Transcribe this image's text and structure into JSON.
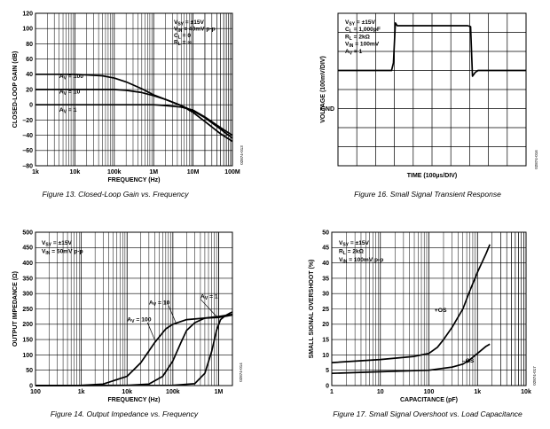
{
  "charts": [
    {
      "caption": "Figure 13. Closed-Loop Gain vs. Frequency",
      "code": "02874-013",
      "conditions": [
        "V SY = ±15V",
        "V IN = 40mV p-p",
        "C L = 0",
        "R L = ∞"
      ],
      "curve_labels": [
        {
          "text": "A V = 100",
          "x": 4000,
          "y": 35
        },
        {
          "text": "A V = 10",
          "x": 4000,
          "y": 15
        },
        {
          "text": "A V = 1",
          "x": 4000,
          "y": -9
        }
      ]
    },
    {
      "caption": "Figure 16. Small Signal Transient Response",
      "code": "02874-016",
      "conditions": [
        "V SY = ±15V",
        "C L = 1,000pF",
        "R L = 2kΩ",
        "V IN = 100mV",
        "A V = 1"
      ]
    },
    {
      "caption": "Figure 14. Output Impedance vs. Frequency",
      "code": "02874-014",
      "conditions": [
        "V SY = ±15V",
        "V IN = 50mV p-p"
      ],
      "curve_labels": [
        {
          "text": "A V = 100",
          "x": 10000,
          "y": 210
        },
        {
          "text": "A V = 10",
          "x": 30000,
          "y": 265
        },
        {
          "text": "A V = 1",
          "x": 400000,
          "y": 285
        }
      ]
    },
    {
      "caption": "Figure 17. Small Signal Overshoot vs. Load Capacitance",
      "code": "02874-017",
      "conditions": [
        "V SY = ±15V",
        "R L = 2kΩ",
        "V IN = 100mV p-p"
      ],
      "curve_labels": [
        {
          "text": "+OS",
          "x": 130,
          "y": 24
        },
        {
          "text": "–OS",
          "x": 480,
          "y": 7.5
        }
      ]
    }
  ],
  "chart_data": [
    {
      "type": "line",
      "xlabel": "FREQUENCY (Hz)",
      "ylabel": "CLOSED-LOOP GAIN (dB)",
      "xscale": "log",
      "xlim": [
        1000,
        100000000
      ],
      "ylim": [
        -80,
        120
      ],
      "xticks": [
        1000,
        10000,
        100000,
        1000000,
        10000000,
        100000000
      ],
      "xtick_labels": [
        "1k",
        "10k",
        "100k",
        "1M",
        "10M",
        "100M"
      ],
      "yticks": [
        -80,
        -60,
        -40,
        -20,
        0,
        20,
        40,
        60,
        80,
        100,
        120
      ],
      "ytick_labels": [
        "–80",
        "–60",
        "–40",
        "–20",
        "0",
        "20",
        "40",
        "60",
        "80",
        "100",
        "120"
      ],
      "grid": true,
      "series": [
        {
          "values": [
            [
              1000,
              40
            ],
            [
              10000,
              40
            ],
            [
              50000,
              38
            ],
            [
              100000,
              35
            ],
            [
              200000,
              30
            ],
            [
              500000,
              21
            ],
            [
              1000000,
              13
            ],
            [
              2000000,
              7
            ],
            [
              5000000,
              -1
            ],
            [
              10000000,
              -10
            ],
            [
              20000000,
              -22
            ],
            [
              50000000,
              -38
            ],
            [
              100000000,
              -48
            ]
          ]
        },
        {
          "values": [
            [
              1000,
              20
            ],
            [
              10000,
              20
            ],
            [
              100000,
              20
            ],
            [
              200000,
              19
            ],
            [
              500000,
              16
            ],
            [
              1000000,
              12
            ],
            [
              2000000,
              7
            ],
            [
              5000000,
              -1
            ],
            [
              10000000,
              -8
            ],
            [
              20000000,
              -17
            ],
            [
              50000000,
              -32
            ],
            [
              100000000,
              -44
            ]
          ]
        },
        {
          "values": [
            [
              1000,
              0
            ],
            [
              100000,
              0
            ],
            [
              1000000,
              0
            ],
            [
              2000000,
              -1
            ],
            [
              5000000,
              -3
            ],
            [
              10000000,
              -7
            ],
            [
              20000000,
              -16
            ],
            [
              50000000,
              -30
            ],
            [
              100000000,
              -40
            ]
          ]
        }
      ]
    },
    {
      "type": "line",
      "xlabel": "TIME (100µs/DIV)",
      "ylabel": "VOLTAGE (100mV/DIV)",
      "ytick_labels": [
        "GND"
      ],
      "xlim": [
        0,
        10
      ],
      "ylim": [
        0,
        8
      ],
      "grid": true,
      "series": [
        {
          "values": [
            [
              0,
              5
            ],
            [
              2.85,
              5
            ],
            [
              2.95,
              5.4
            ],
            [
              3.05,
              7.5
            ],
            [
              3.15,
              7.35
            ],
            [
              6.9,
              7.35
            ],
            [
              7.05,
              7.3
            ],
            [
              7.15,
              4.7
            ],
            [
              7.3,
              4.9
            ],
            [
              7.45,
              5
            ],
            [
              10,
              5
            ]
          ]
        }
      ]
    },
    {
      "type": "line",
      "xlabel": "FREQUENCY (Hz)",
      "ylabel": "OUTPUT IMPEDANCE (Ω)",
      "xscale": "log",
      "xlim": [
        100,
        2000000
      ],
      "ylim": [
        0,
        500
      ],
      "xticks": [
        100,
        1000,
        10000,
        100000,
        1000000
      ],
      "xtick_labels": [
        "100",
        "1k",
        "10k",
        "100k",
        "1M"
      ],
      "yticks": [
        0,
        50,
        100,
        150,
        200,
        250,
        300,
        350,
        400,
        450,
        500
      ],
      "ytick_labels": [
        "0",
        "50",
        "100",
        "150",
        "200",
        "250",
        "300",
        "350",
        "400",
        "450",
        "500"
      ],
      "grid": true,
      "series": [
        {
          "values": [
            [
              100,
              0
            ],
            [
              1000,
              1
            ],
            [
              3000,
              5
            ],
            [
              10000,
              30
            ],
            [
              20000,
              75
            ],
            [
              40000,
              140
            ],
            [
              70000,
              185
            ],
            [
              100000,
              200
            ],
            [
              200000,
              215
            ],
            [
              500000,
              220
            ],
            [
              1000000,
              222
            ],
            [
              2000000,
              230
            ]
          ]
        },
        {
          "values": [
            [
              100,
              0
            ],
            [
              10000,
              1
            ],
            [
              30000,
              5
            ],
            [
              60000,
              30
            ],
            [
              100000,
              80
            ],
            [
              150000,
              140
            ],
            [
              200000,
              180
            ],
            [
              300000,
              205
            ],
            [
              500000,
              220
            ],
            [
              1000000,
              225
            ],
            [
              2000000,
              232
            ]
          ]
        },
        {
          "values": [
            [
              100,
              0
            ],
            [
              100000,
              1
            ],
            [
              300000,
              6
            ],
            [
              500000,
              40
            ],
            [
              700000,
              110
            ],
            [
              900000,
              180
            ],
            [
              1100000,
              215
            ],
            [
              1400000,
              228
            ],
            [
              1700000,
              235
            ],
            [
              2000000,
              240
            ]
          ]
        }
      ]
    },
    {
      "type": "line",
      "xlabel": "CAPACITANCE (pF)",
      "ylabel": "SMALL SIGNAL OVERSHOOT (%)",
      "xscale": "log",
      "xlim": [
        1,
        10000
      ],
      "ylim": [
        0,
        50
      ],
      "xticks": [
        1,
        10,
        100,
        1000,
        10000
      ],
      "xtick_labels": [
        "1",
        "10",
        "100",
        "1k",
        "10k"
      ],
      "yticks": [
        0,
        5,
        10,
        15,
        20,
        25,
        30,
        35,
        40,
        45,
        50
      ],
      "ytick_labels": [
        "0",
        "5",
        "10",
        "15",
        "20",
        "25",
        "30",
        "35",
        "40",
        "45",
        "50"
      ],
      "grid": true,
      "series": [
        {
          "values": [
            [
              1,
              7.5
            ],
            [
              10,
              8.5
            ],
            [
              50,
              9.5
            ],
            [
              100,
              10.5
            ],
            [
              150,
              12.5
            ],
            [
              200,
              15
            ],
            [
              300,
              19
            ],
            [
              500,
              25
            ],
            [
              700,
              31
            ],
            [
              1000,
              37
            ],
            [
              1500,
              43
            ],
            [
              1800,
              46
            ]
          ]
        },
        {
          "values": [
            [
              1,
              4
            ],
            [
              10,
              4.5
            ],
            [
              100,
              5
            ],
            [
              300,
              6
            ],
            [
              500,
              7
            ],
            [
              700,
              8.5
            ],
            [
              1000,
              10.5
            ],
            [
              1500,
              12.8
            ],
            [
              1800,
              13.5
            ]
          ]
        }
      ]
    }
  ]
}
